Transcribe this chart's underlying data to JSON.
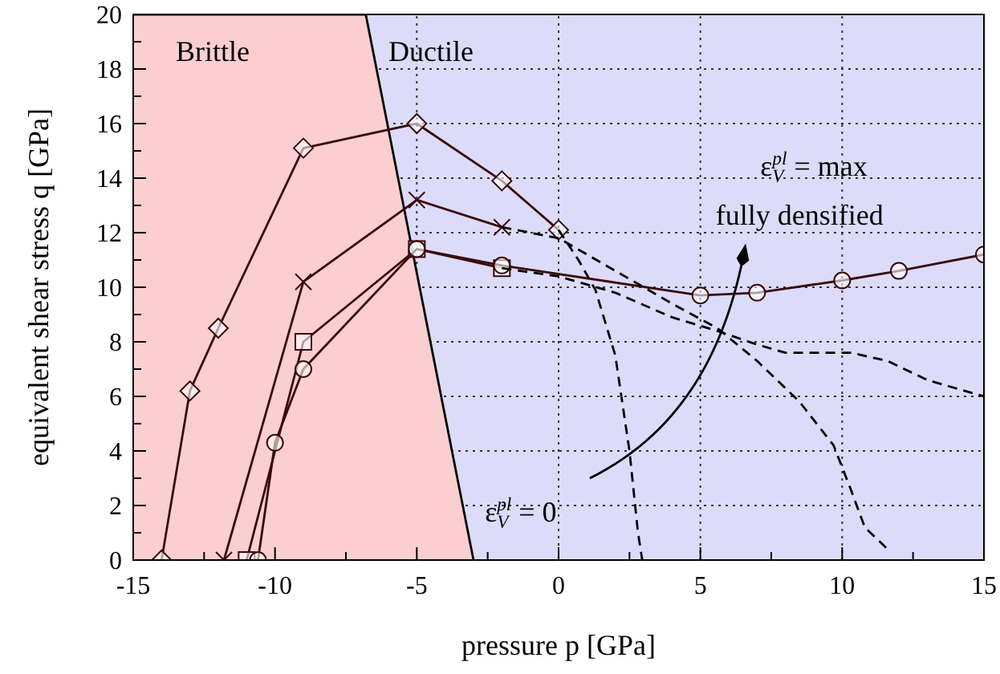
{
  "chart_data": {
    "type": "line",
    "xlabel": "pressure  p [GPa]",
    "ylabel": "equivalent shear stress  q [GPa]",
    "xlim": [
      -15,
      15
    ],
    "ylim": [
      0,
      20
    ],
    "xticks": [
      -15,
      {
        "value": -12.5,
        "label": null
      },
      -10,
      {
        "value": -7.5,
        "label": null
      },
      -5,
      {
        "value": -2.5,
        "label": null
      },
      0,
      {
        "value": 2.5,
        "label": null
      },
      5,
      {
        "value": 7.5,
        "label": null
      },
      10,
      {
        "value": 12.5,
        "label": null
      },
      15
    ],
    "yticks": [
      0,
      {
        "value": 1,
        "label": null
      },
      2,
      {
        "value": 3,
        "label": null
      },
      4,
      {
        "value": 5,
        "label": null
      },
      6,
      {
        "value": 7,
        "label": null
      },
      8,
      {
        "value": 9,
        "label": null
      },
      10,
      {
        "value": 11,
        "label": null
      },
      12,
      {
        "value": 13,
        "label": null
      },
      14,
      {
        "value": 15,
        "label": null
      },
      16,
      {
        "value": 17,
        "label": null
      },
      18,
      {
        "value": 19,
        "label": null
      },
      20
    ],
    "grid": true,
    "line_style": "solid",
    "series": [
      {
        "type": "area",
        "color": "#fbcfd0",
        "x": [
          -15,
          -6.8,
          -3
        ],
        "values": [
          20,
          20,
          0
        ]
      },
      {
        "color": "#3a0a0a",
        "marker": "diamond",
        "x": [
          -14,
          -13,
          -12,
          -9,
          -5,
          -2,
          0
        ],
        "values": [
          0,
          6.2,
          8.5,
          15.1,
          16,
          13.9,
          12.1
        ]
      },
      {
        "color": "#3a0a0a",
        "marker": "cross",
        "x": [
          -11.8,
          -9,
          -5,
          -2
        ],
        "values": [
          0,
          10.2,
          13.2,
          12.2
        ]
      },
      {
        "color": "#3a0a0a",
        "marker": "square",
        "x": [
          -11,
          -9,
          -5,
          -2
        ],
        "values": [
          0,
          8,
          11.4,
          10.7
        ]
      },
      {
        "color": "#3a0a0a",
        "marker": "circle",
        "x": [
          -10.6,
          -10,
          -9,
          -5,
          -2,
          5,
          7,
          10,
          12,
          15
        ],
        "values": [
          0,
          4.3,
          7,
          11.4,
          10.8,
          9.7,
          9.8,
          10.25,
          10.6,
          11.2
        ]
      },
      {
        "color": "#000000",
        "marker": "none",
        "line_style": "dashed",
        "x": [
          0,
          0.7,
          1.3,
          2,
          2.5,
          2.8,
          2.95
        ],
        "values": [
          12.1,
          11,
          9.9,
          7.5,
          4,
          1,
          0
        ]
      },
      {
        "color": "#000000",
        "marker": "none",
        "line_style": "dashed",
        "x": [
          -2,
          0,
          2,
          4,
          5.6,
          7,
          8.5,
          9.7,
          10.3,
          10.8,
          11.7
        ],
        "values": [
          12.2,
          11.8,
          10.6,
          9.4,
          8.5,
          7.3,
          5.8,
          4.2,
          2.6,
          1.2,
          0.3
        ]
      },
      {
        "color": "#000000",
        "marker": "none",
        "line_style": "dashed",
        "x": [
          -2,
          0,
          2,
          4,
          5.6,
          7,
          8,
          10.3,
          11.6,
          13,
          15
        ],
        "values": [
          10.7,
          10.4,
          9.8,
          8.9,
          8.4,
          7.9,
          7.6,
          7.6,
          7.3,
          6.6,
          6.0
        ]
      }
    ],
    "annotations": [
      "Brittle",
      "Ductile",
      "ε$_{V}$$^{pl}$ = max",
      "fully densified",
      "ε$_{V}$$^{pl}$ = 0"
    ]
  }
}
